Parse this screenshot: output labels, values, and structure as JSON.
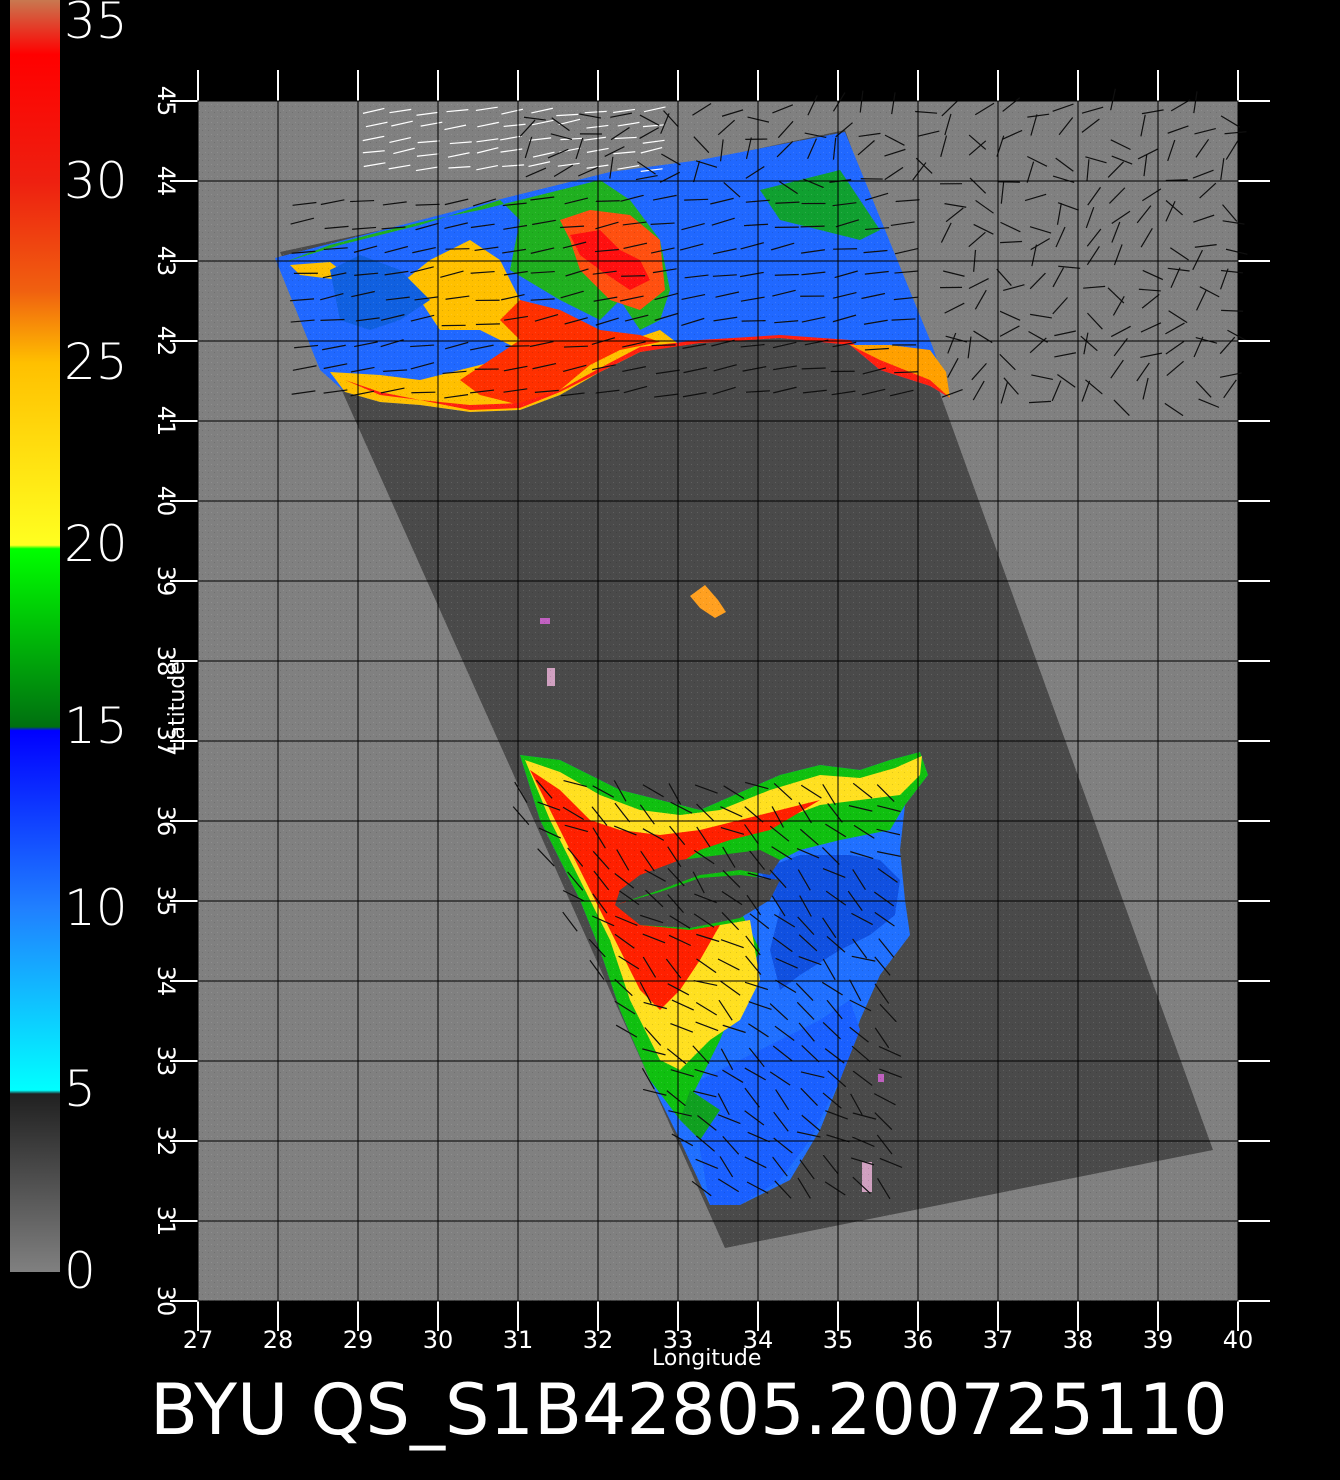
{
  "title": "BYU QS_S1B42805.200725110",
  "axes": {
    "xlabel": "Longitude",
    "ylabel": "Latitude",
    "x_ticks": [
      "27",
      "28",
      "29",
      "30",
      "31",
      "32",
      "33",
      "34",
      "35",
      "36",
      "37",
      "38",
      "39",
      "40"
    ],
    "y_ticks": [
      "30",
      "31",
      "32",
      "33",
      "34",
      "35",
      "36",
      "37",
      "38",
      "39",
      "40",
      "41",
      "42",
      "43",
      "44",
      "45"
    ],
    "x_range": [
      27,
      40
    ],
    "y_range": [
      30,
      45
    ]
  },
  "colorbar": {
    "labels": [
      "35",
      "30",
      "25",
      "20",
      "15",
      "10",
      "5",
      "0"
    ],
    "range": [
      0,
      35
    ],
    "stops": [
      {
        "value": 35,
        "color": "#c87850"
      },
      {
        "value": 33.5,
        "color": "#ff0000"
      },
      {
        "value": 30,
        "color": "#ee2010"
      },
      {
        "value": 27,
        "color": "#f06010"
      },
      {
        "value": 25,
        "color": "#ffc000"
      },
      {
        "value": 20,
        "color": "#ffff20"
      },
      {
        "value": 19.9,
        "color": "#00ff00"
      },
      {
        "value": 15,
        "color": "#007010"
      },
      {
        "value": 14.9,
        "color": "#0000ff"
      },
      {
        "value": 10,
        "color": "#2080ff"
      },
      {
        "value": 5,
        "color": "#00ffff"
      },
      {
        "value": 4.9,
        "color": "#202020"
      },
      {
        "value": 0,
        "color": "#808080"
      }
    ]
  },
  "colors": {
    "background": "#000000",
    "map_background": "#808080",
    "swath": "#4a4a4a",
    "grid": "#000000",
    "text": "#ffffff"
  }
}
